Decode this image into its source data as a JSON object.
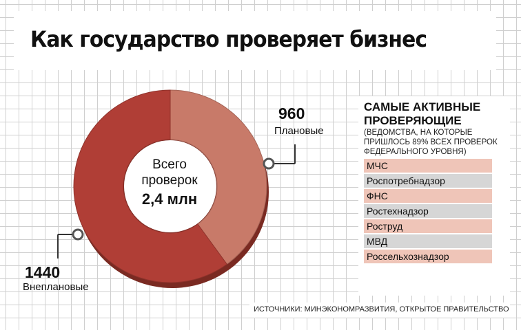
{
  "title": "Как государство проверяет бизнес",
  "chart_data": {
    "type": "pie",
    "variant": "donut",
    "center": {
      "line1": "Всего",
      "line2": "проверок",
      "value": "2,4 млн"
    },
    "slices": [
      {
        "label": "Плановые",
        "value": 960,
        "value_text": "960",
        "color": "#c87a69"
      },
      {
        "label": "Внеплановые",
        "value": 1440,
        "value_text": "1440",
        "color": "#b03e36"
      }
    ]
  },
  "panel": {
    "title": "Самые активные проверяющие",
    "subtitle": "(ведомства, на которые пришлось 89% всех проверок федерального уровня)",
    "agencies": [
      {
        "name": "МЧС",
        "color": "#efc5b8"
      },
      {
        "name": "Роспотребнадзор",
        "color": "#d6d6d6"
      },
      {
        "name": "ФНС",
        "color": "#efc5b8"
      },
      {
        "name": "Ростехнадзор",
        "color": "#d6d6d6"
      },
      {
        "name": "Роструд",
        "color": "#efc5b8"
      },
      {
        "name": "МВД",
        "color": "#d6d6d6"
      },
      {
        "name": "Россельхознадзор",
        "color": "#efc5b8"
      }
    ]
  },
  "source": "Источники: Минэкономразвития, Открытое правительство"
}
